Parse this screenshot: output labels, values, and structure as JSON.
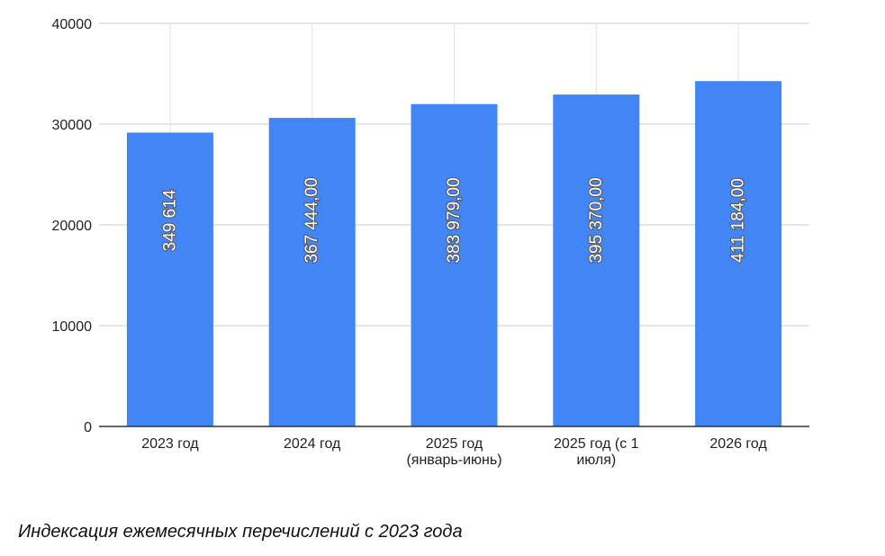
{
  "chart_data": {
    "type": "bar",
    "title": "",
    "xlabel": "",
    "ylabel": "",
    "ylim": [
      0,
      40000
    ],
    "yticks": [
      "0",
      "10000",
      "20000",
      "30000",
      "40000"
    ],
    "grid": true,
    "legend": "none",
    "bar_color": "#4285f4",
    "categories": [
      [
        "2023 год"
      ],
      [
        "2024 год"
      ],
      [
        "2025 год",
        "(январь-июнь)"
      ],
      [
        "2025 год (с 1",
        "июля)"
      ],
      [
        "2026 год"
      ]
    ],
    "values": [
      29160,
      30620,
      31990,
      32940,
      34270
    ],
    "data_labels": [
      "349 614",
      "367 444,00",
      "383 979,00",
      "395 370,00",
      "411 184,00"
    ]
  },
  "caption": "Индексация ежемесячных перечислений с 2023 года"
}
